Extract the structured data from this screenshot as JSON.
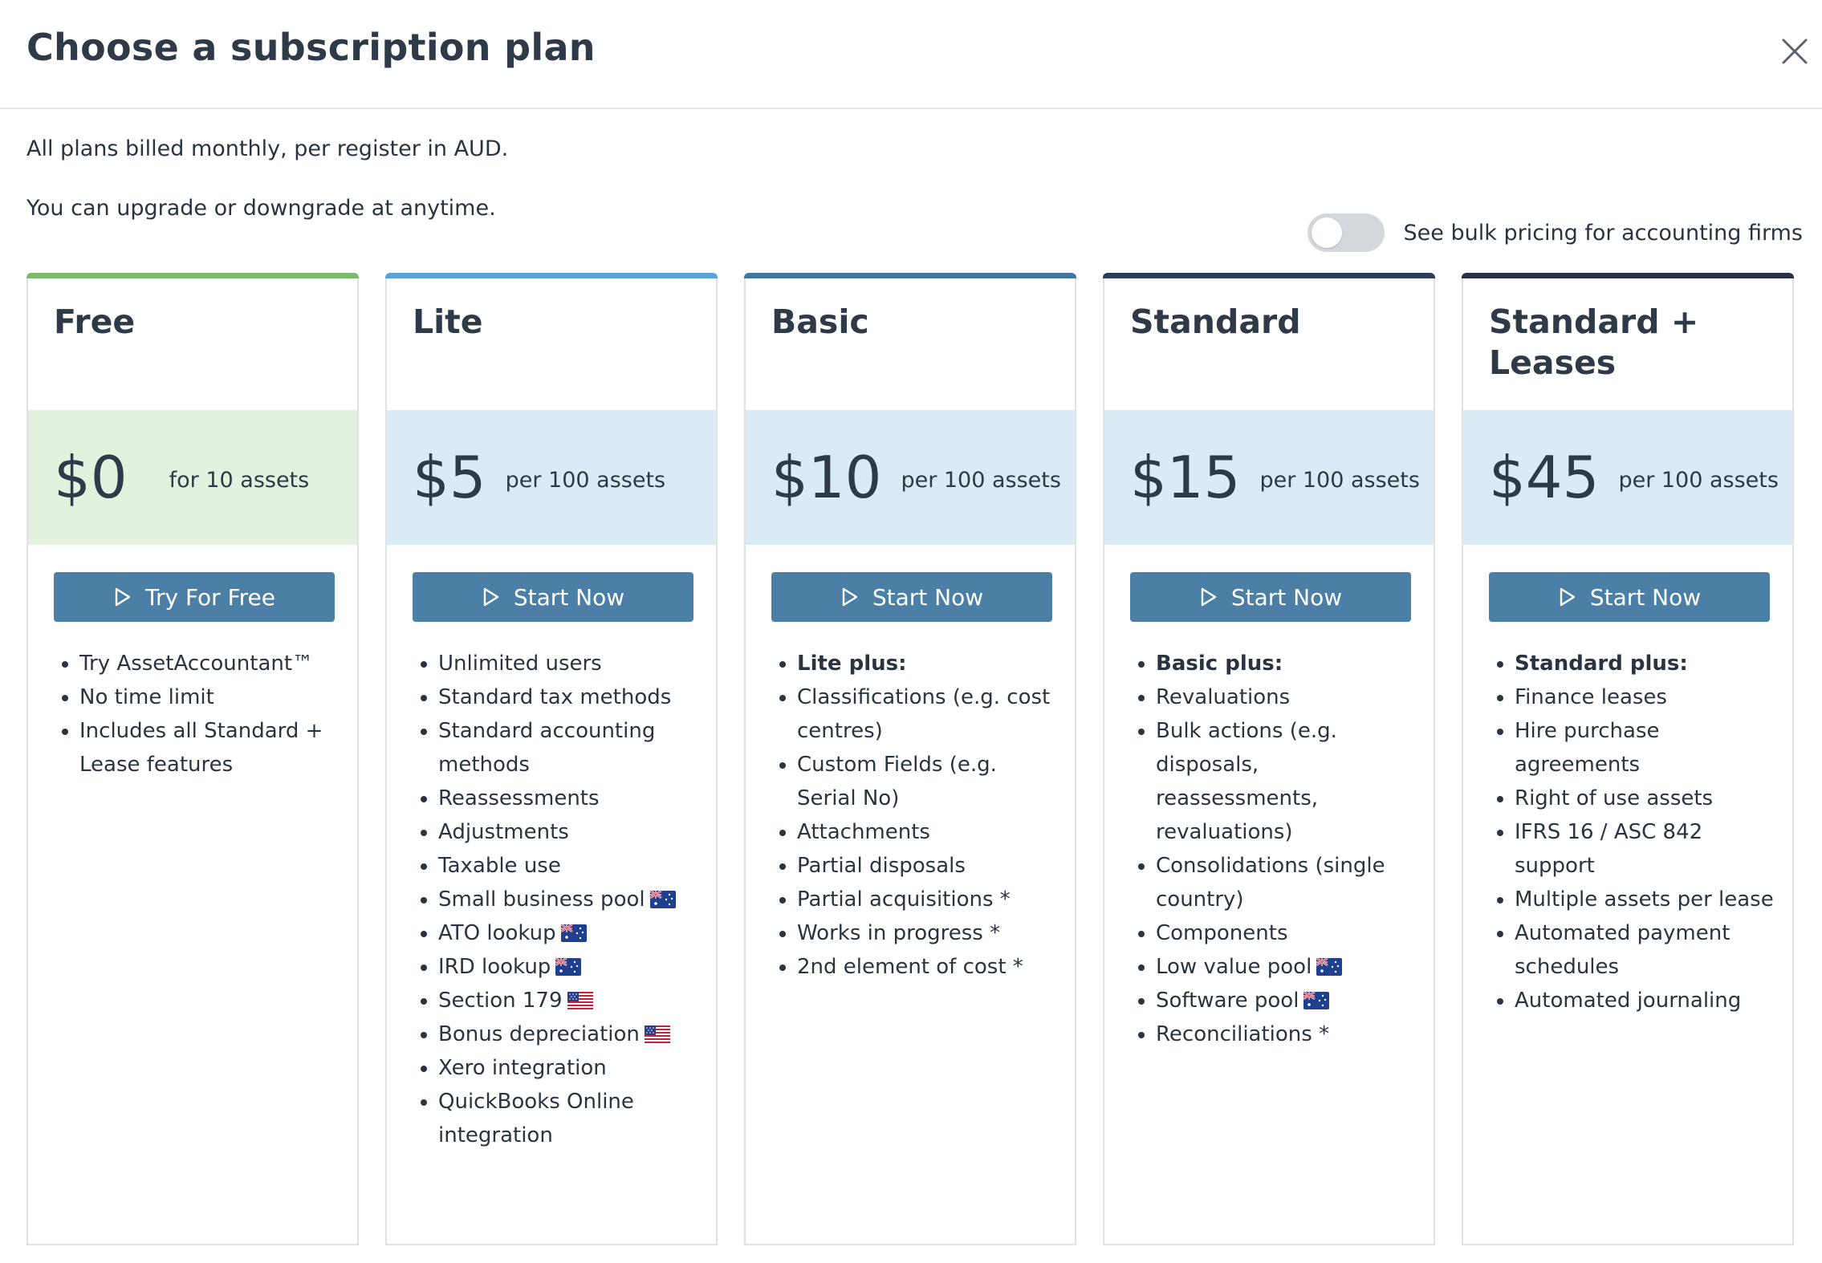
{
  "dialog": {
    "title": "Choose a subscription plan",
    "close_icon": "close-icon"
  },
  "intro": {
    "line1": "All plans billed monthly, per register in AUD.",
    "line2": "You can upgrade or downgrade at anytime."
  },
  "bulk_toggle": {
    "label": "See bulk pricing for accounting firms",
    "checked": false
  },
  "colors": {
    "free_accent": "#7cb96e",
    "lite_accent": "#5aa3d6",
    "basic_accent": "#44779f",
    "standard_accent": "#2c3e55",
    "leases_accent": "#263240",
    "free_band": "#e3f1df",
    "paid_band": "#dbebf6",
    "button": "#4b7fa5"
  },
  "plans": [
    {
      "name": "Free",
      "price": "$0",
      "unit": "for 10 assets",
      "button": "Try For Free",
      "features": [
        {
          "text": "Try AssetAccountant™"
        },
        {
          "text": "No time limit"
        },
        {
          "text": "Includes all Standard + Lease features"
        }
      ]
    },
    {
      "name": "Lite",
      "price": "$5",
      "unit": "per 100 assets",
      "button": "Start Now",
      "features": [
        {
          "text": "Unlimited users"
        },
        {
          "text": "Standard tax methods"
        },
        {
          "text": "Standard accounting methods"
        },
        {
          "text": "Reassessments"
        },
        {
          "text": "Adjustments"
        },
        {
          "text": "Taxable use"
        },
        {
          "text": "Small business pool",
          "flag": "au"
        },
        {
          "text": "ATO lookup",
          "flag": "au"
        },
        {
          "text": "IRD lookup",
          "flag": "au"
        },
        {
          "text": "Section 179",
          "flag": "us"
        },
        {
          "text": "Bonus depreciation",
          "flag": "us"
        },
        {
          "text": "Xero integration"
        },
        {
          "text": "QuickBooks Online integration"
        }
      ]
    },
    {
      "name": "Basic",
      "price": "$10",
      "unit": "per 100 assets",
      "button": "Start Now",
      "features": [
        {
          "text": "Lite plus:",
          "bold": true
        },
        {
          "text": "Classifications (e.g. cost centres)"
        },
        {
          "text": "Custom Fields (e.g. Serial No)"
        },
        {
          "text": "Attachments"
        },
        {
          "text": "Partial disposals"
        },
        {
          "text": "Partial acquisitions *"
        },
        {
          "text": "Works in progress *"
        },
        {
          "text": "2nd element of cost *"
        }
      ]
    },
    {
      "name": "Standard",
      "price": "$15",
      "unit": "per 100 assets",
      "button": "Start Now",
      "features": [
        {
          "text": "Basic plus:",
          "bold": true
        },
        {
          "text": "Revaluations"
        },
        {
          "text": "Bulk actions (e.g. disposals, reassessments, revaluations)"
        },
        {
          "text": "Consolidations (single country)"
        },
        {
          "text": "Components"
        },
        {
          "text": "Low value pool",
          "flag": "au"
        },
        {
          "text": "Software pool",
          "flag": "au"
        },
        {
          "text": "Reconciliations *"
        }
      ]
    },
    {
      "name": "Standard + Leases",
      "price": "$45",
      "unit": "per 100 assets",
      "button": "Start Now",
      "features": [
        {
          "text": "Standard plus:",
          "bold": true
        },
        {
          "text": "Finance leases"
        },
        {
          "text": "Hire purchase agreements"
        },
        {
          "text": "Right of use assets"
        },
        {
          "text": "IFRS 16 / ASC 842 support"
        },
        {
          "text": "Multiple assets per lease"
        },
        {
          "text": "Automated payment schedules"
        },
        {
          "text": "Automated journaling"
        }
      ]
    }
  ]
}
